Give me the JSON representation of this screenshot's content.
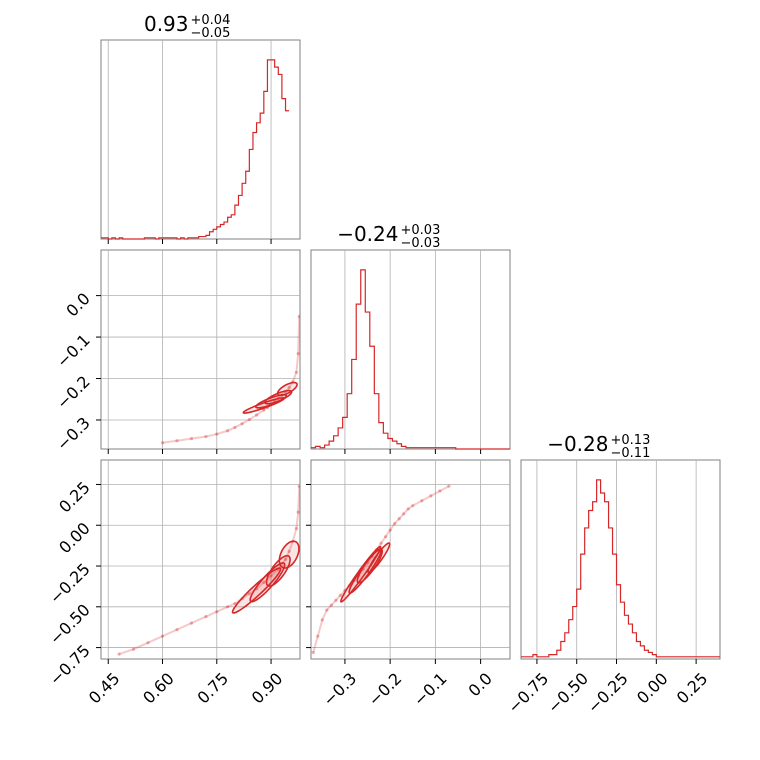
{
  "figure": {
    "name": "corner-plot"
  },
  "chart_data": [
    {
      "type": "histogram",
      "panel": "diag-0",
      "title": {
        "main": "0.93",
        "plus": "+0.04",
        "minus": "−0.05"
      },
      "xlim": [
        0.43,
        0.98
      ],
      "xticks": [
        0.45,
        0.6,
        0.75,
        0.9
      ],
      "bin_start": 0.43,
      "bin_width": 0.01,
      "counts": [
        0.5,
        0.5,
        0,
        0.5,
        0,
        0.5,
        0,
        0,
        0,
        0,
        0,
        0,
        0.5,
        0.5,
        0.5,
        0,
        0.5,
        0.5,
        0.5,
        0.5,
        0.5,
        0,
        0.5,
        0,
        0.5,
        0.5,
        0.5,
        1,
        1,
        1.5,
        3,
        4,
        5,
        6,
        7,
        9,
        10,
        14,
        18,
        23,
        28,
        37,
        44,
        48,
        52,
        61,
        74,
        74,
        71,
        68,
        58,
        53
      ],
      "color": "#d62728",
      "grid": true
    },
    {
      "type": "histogram",
      "panel": "diag-1",
      "title": {
        "main": "−0.24",
        "plus": "+0.03",
        "minus": "−0.03"
      },
      "xlim": [
        -0.375,
        0.065
      ],
      "xticks": [
        -0.3,
        -0.2,
        -0.1,
        0.0
      ],
      "bin_start": -0.375,
      "bin_width": 0.01,
      "counts": [
        0.5,
        1,
        0.5,
        1.5,
        3,
        5,
        8,
        12,
        21,
        34,
        55,
        68,
        52,
        39,
        21,
        10,
        6,
        4,
        3,
        2,
        1,
        0.5,
        0.5,
        0.5,
        0.5,
        0.5,
        0.5,
        0.5,
        0.5,
        0.5,
        0.5,
        0.5,
        0,
        0,
        0,
        0,
        0,
        0,
        0,
        0,
        0,
        0,
        0,
        0
      ],
      "color": "#d62728",
      "grid": true
    },
    {
      "type": "histogram",
      "panel": "diag-2",
      "title": {
        "main": "−0.28",
        "plus": "+0.13",
        "minus": "−0.11"
      },
      "xlim": [
        -0.85,
        0.4
      ],
      "xticks": [
        -0.75,
        -0.5,
        -0.25,
        0.0,
        0.25
      ],
      "tick_labels": [
        "−0.75",
        "−0.50",
        "−0.25",
        "0.00",
        "0.25"
      ],
      "bin_start": -0.85,
      "bin_width": 0.025,
      "counts": [
        0.5,
        0.5,
        0.5,
        1,
        0.5,
        0.5,
        0.5,
        1,
        1,
        2,
        4,
        6,
        9,
        12,
        16,
        24,
        30,
        34,
        36,
        41,
        38,
        36,
        30,
        24,
        17,
        13,
        10,
        8,
        6,
        4,
        3,
        2,
        1.5,
        1,
        0.5,
        0.5,
        0.5,
        0.5,
        0.5,
        0.5,
        0.5,
        0.5,
        0.5,
        0.5,
        0.5,
        0.5,
        0.5,
        0.5,
        0.5,
        0.5
      ],
      "color": "#d62728",
      "grid": true
    },
    {
      "type": "scatter",
      "panel": "2d-1-0",
      "xlim": [
        0.43,
        0.98
      ],
      "ylim": [
        -0.37,
        0.11
      ],
      "xticks": [
        0.45,
        0.6,
        0.75,
        0.9
      ],
      "yticks": [
        -0.3,
        -0.2,
        -0.1,
        0.0
      ],
      "x": [
        0.6,
        0.64,
        0.68,
        0.72,
        0.75,
        0.78,
        0.8,
        0.82,
        0.84,
        0.86,
        0.88,
        0.89,
        0.9,
        0.91,
        0.92,
        0.93,
        0.94,
        0.95,
        0.96,
        0.97,
        0.975,
        0.978
      ],
      "y": [
        -0.355,
        -0.35,
        -0.345,
        -0.34,
        -0.334,
        -0.326,
        -0.318,
        -0.309,
        -0.299,
        -0.288,
        -0.276,
        -0.27,
        -0.263,
        -0.256,
        -0.248,
        -0.24,
        -0.232,
        -0.222,
        -0.208,
        -0.185,
        -0.14,
        -0.05
      ],
      "contours": [
        {
          "cx": 0.88,
          "cy": -0.265,
          "a": 0.06,
          "b": 0.006,
          "angle": 0.34
        },
        {
          "cx": 0.9,
          "cy": -0.255,
          "a": 0.045,
          "b": 0.008,
          "angle": 0.36
        },
        {
          "cx": 0.92,
          "cy": -0.245,
          "a": 0.04,
          "b": 0.009,
          "angle": 0.4
        },
        {
          "cx": 0.945,
          "cy": -0.225,
          "a": 0.03,
          "b": 0.01,
          "angle": 0.5
        }
      ],
      "color": "#d62728"
    },
    {
      "type": "scatter",
      "panel": "2d-2-0",
      "xlim": [
        0.43,
        0.98
      ],
      "ylim": [
        -0.82,
        0.4
      ],
      "xticks": [
        0.45,
        0.6,
        0.75,
        0.9
      ],
      "yticks": [
        -0.75,
        -0.5,
        -0.25,
        0.0,
        0.25
      ],
      "xtick_labels": [
        "0.45",
        "0.60",
        "0.75",
        "0.90"
      ],
      "ytick_labels": [
        "−0.75",
        "−0.50",
        "−0.25",
        "0.00",
        "0.25"
      ],
      "x": [
        0.48,
        0.52,
        0.56,
        0.6,
        0.64,
        0.68,
        0.72,
        0.75,
        0.78,
        0.8,
        0.82,
        0.84,
        0.86,
        0.88,
        0.9,
        0.92,
        0.94,
        0.95,
        0.96,
        0.97,
        0.975,
        0.978
      ],
      "y": [
        -0.79,
        -0.76,
        -0.72,
        -0.68,
        -0.64,
        -0.6,
        -0.56,
        -0.53,
        -0.5,
        -0.48,
        -0.45,
        -0.42,
        -0.39,
        -0.35,
        -0.31,
        -0.27,
        -0.21,
        -0.16,
        -0.1,
        -0.02,
        0.08,
        0.24
      ],
      "contours": [
        {
          "cx": 0.86,
          "cy": -0.4,
          "a": 0.09,
          "b": 0.03,
          "angle": 0.75
        },
        {
          "cx": 0.89,
          "cy": -0.35,
          "a": 0.07,
          "b": 0.035,
          "angle": 0.85
        },
        {
          "cx": 0.92,
          "cy": -0.28,
          "a": 0.05,
          "b": 0.04,
          "angle": 0.95
        },
        {
          "cx": 0.95,
          "cy": -0.18,
          "a": 0.04,
          "b": 0.05,
          "angle": 1.1
        }
      ],
      "color": "#d62728"
    },
    {
      "type": "scatter",
      "panel": "2d-2-1",
      "xlim": [
        -0.375,
        0.065
      ],
      "ylim": [
        -0.82,
        0.4
      ],
      "xticks": [
        -0.3,
        -0.2,
        -0.1,
        0.0
      ],
      "yticks": [
        -0.75,
        -0.5,
        -0.25,
        0.0,
        0.25
      ],
      "xtick_labels": [
        "−0.3",
        "−0.2",
        "−0.1",
        "0.0"
      ],
      "x": [
        -0.37,
        -0.36,
        -0.35,
        -0.34,
        -0.33,
        -0.32,
        -0.31,
        -0.3,
        -0.29,
        -0.28,
        -0.27,
        -0.26,
        -0.25,
        -0.24,
        -0.23,
        -0.22,
        -0.21,
        -0.2,
        -0.19,
        -0.18,
        -0.17,
        -0.16,
        -0.15,
        -0.13,
        -0.11,
        -0.09,
        -0.07
      ],
      "y": [
        -0.78,
        -0.68,
        -0.58,
        -0.52,
        -0.49,
        -0.46,
        -0.43,
        -0.4,
        -0.37,
        -0.34,
        -0.31,
        -0.27,
        -0.23,
        -0.19,
        -0.15,
        -0.11,
        -0.07,
        -0.03,
        0.01,
        0.04,
        0.07,
        0.1,
        0.12,
        0.15,
        0.18,
        0.21,
        0.24
      ],
      "contours": [
        {
          "cx": -0.265,
          "cy": -0.3,
          "a": 0.075,
          "b": 0.02,
          "angle": 0.95
        },
        {
          "cx": -0.255,
          "cy": -0.28,
          "a": 0.06,
          "b": 0.026,
          "angle": 0.95
        },
        {
          "cx": -0.245,
          "cy": -0.25,
          "a": 0.045,
          "b": 0.03,
          "angle": 0.95
        },
        {
          "cx": -0.225,
          "cy": -0.2,
          "a": 0.04,
          "b": 0.02,
          "angle": 0.95
        }
      ],
      "color": "#d62728"
    }
  ]
}
